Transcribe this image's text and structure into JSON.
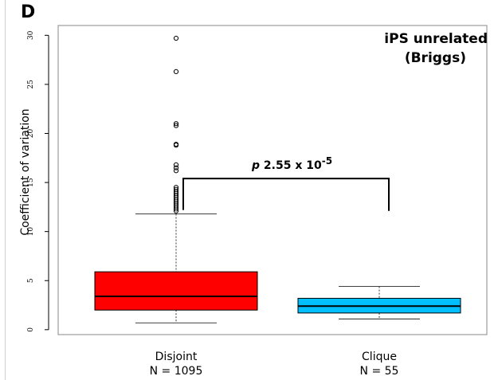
{
  "panel_label": "D",
  "chart_data": {
    "type": "box",
    "title_line1": "iPS unrelated",
    "title_line2": "(Briggs)",
    "ylabel": "Coefficient of variation",
    "ylim": [
      -0.5,
      31
    ],
    "yticks": [
      0,
      5,
      10,
      15,
      20,
      25,
      30
    ],
    "categories": [
      {
        "label": "Disjoint",
        "n_label": "N = 1095"
      },
      {
        "label": "Clique",
        "n_label": "N = 55"
      }
    ],
    "boxes": [
      {
        "name": "Disjoint",
        "color": "#ff0000",
        "whisker_low": 0.7,
        "q1": 2.0,
        "median": 3.4,
        "q3": 5.9,
        "whisker_high": 11.8,
        "outliers": [
          12.1,
          12.3,
          12.5,
          12.7,
          12.9,
          13.1,
          13.3,
          13.5,
          13.7,
          13.9,
          14.1,
          14.3,
          14.5,
          16.2,
          16.5,
          16.8,
          18.8,
          18.9,
          20.8,
          21.0,
          26.3,
          29.7
        ]
      },
      {
        "name": "Clique",
        "color": "#00bfff",
        "whisker_low": 1.1,
        "q1": 1.7,
        "median": 2.4,
        "q3": 3.2,
        "whisker_high": 4.4,
        "outliers": []
      }
    ],
    "significance": {
      "label": "p",
      "mantissa": "2.55 x 10",
      "exponent": "-5",
      "bracket_left_y": 12.2,
      "bracket_top_y": 15.4,
      "bracket_right_y": 12.1
    }
  }
}
